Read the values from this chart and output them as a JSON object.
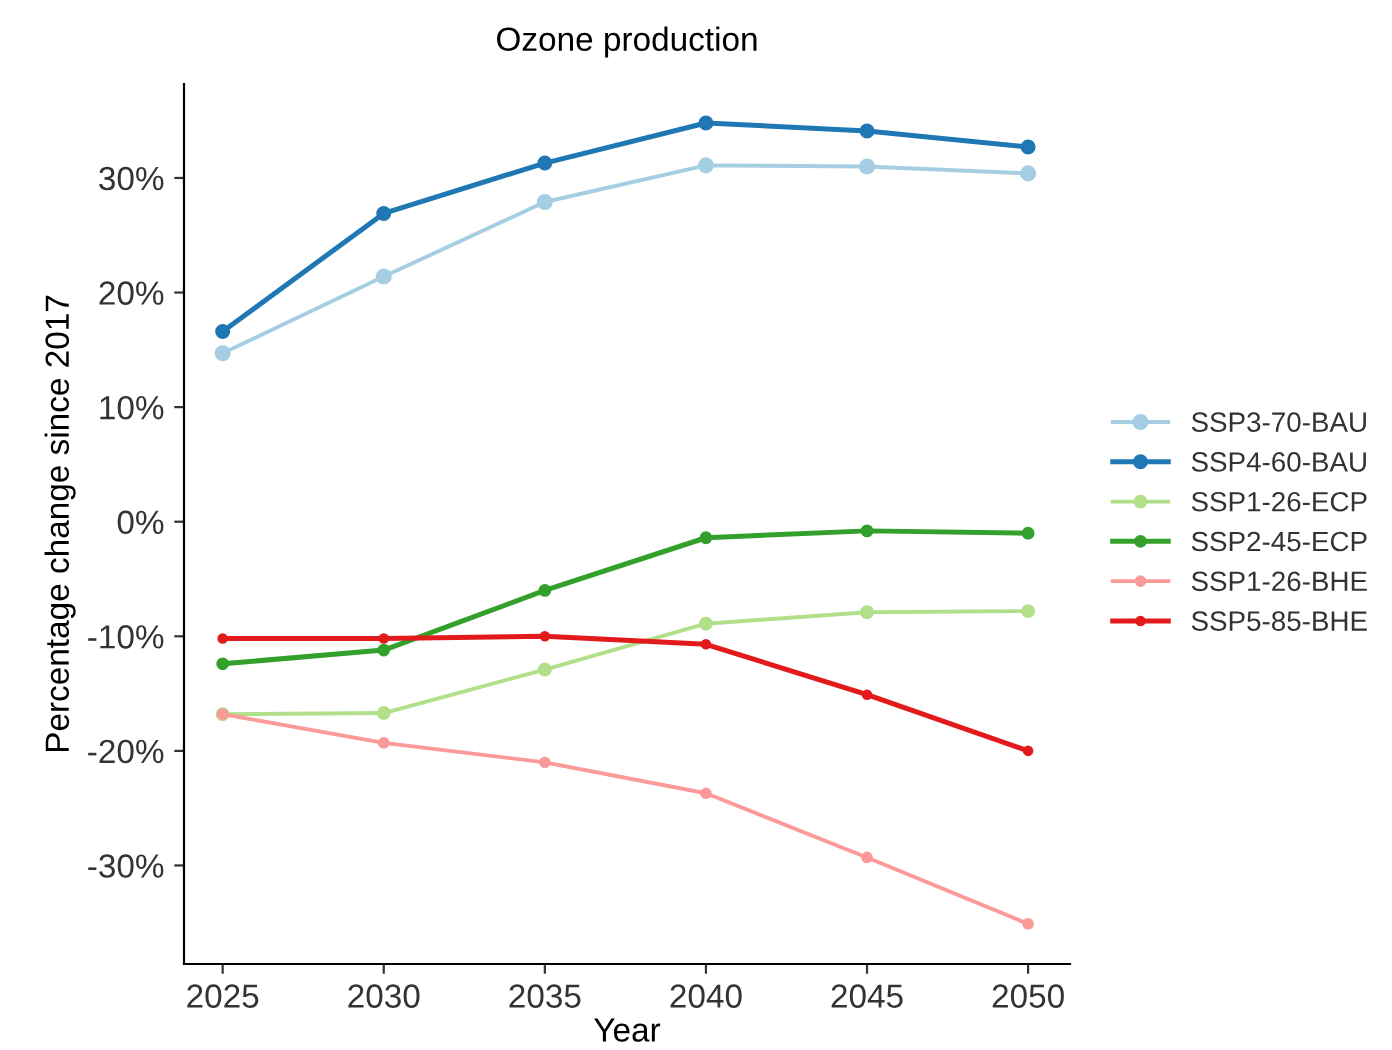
{
  "chart_data": {
    "type": "line",
    "title": "Ozone production",
    "xlabel": "Year",
    "ylabel": "Percentage change since 2017",
    "x": [
      2025,
      2030,
      2035,
      2040,
      2045,
      2050
    ],
    "series": [
      {
        "name": "SSP3-70-BAU",
        "color": "#a6cee3",
        "values": [
          14.7,
          21.4,
          27.9,
          31.1,
          31.0,
          30.4
        ]
      },
      {
        "name": "SSP4-60-BAU",
        "color": "#1f78b4",
        "values": [
          16.6,
          26.9,
          31.3,
          34.8,
          34.1,
          32.7
        ]
      },
      {
        "name": "SSP1-26-ECP",
        "color": "#b2df8a",
        "values": [
          -16.8,
          -16.7,
          -12.9,
          -8.9,
          -7.9,
          -7.8
        ]
      },
      {
        "name": "SSP2-45-ECP",
        "color": "#33a02c",
        "values": [
          -12.4,
          -11.2,
          -6.0,
          -1.4,
          -0.8,
          -1.0
        ]
      },
      {
        "name": "SSP1-26-BHE",
        "color": "#fb9a99",
        "values": [
          -16.8,
          -19.3,
          -21.0,
          -23.7,
          -29.3,
          -35.1
        ]
      },
      {
        "name": "SSP5-85-BHE",
        "color": "#e31a1c",
        "values": [
          -10.2,
          -10.2,
          -10.0,
          -10.7,
          -15.1,
          -20.0
        ]
      }
    ],
    "xlim": [
      2023.8,
      2051.3
    ],
    "ylim": [
      -38.6,
      38.2
    ],
    "xticks": [
      2025,
      2030,
      2035,
      2040,
      2045,
      2050
    ],
    "yticks": [
      {
        "value": -30,
        "label": "-30%"
      },
      {
        "value": -20,
        "label": "-20%"
      },
      {
        "value": -10,
        "label": "-10%"
      },
      {
        "value": 0,
        "label": "0%"
      },
      {
        "value": 10,
        "label": "10%"
      },
      {
        "value": 20,
        "label": "20%"
      },
      {
        "value": 30,
        "label": "30%"
      }
    ],
    "grid": false,
    "legend": "right",
    "marker": "circle",
    "line_style": "solid"
  }
}
